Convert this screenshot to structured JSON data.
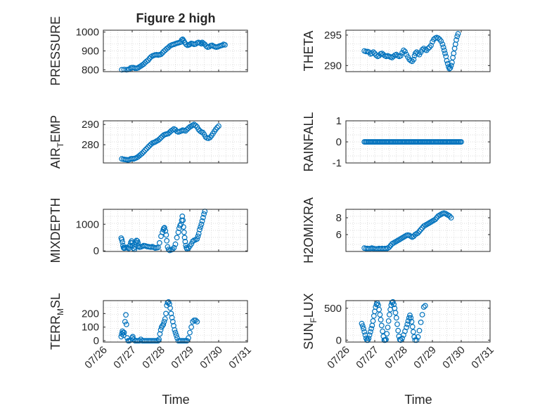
{
  "figure": {
    "title": "Figure 2 high",
    "xlabel": "Time",
    "x_tick_labels": [
      "07/26",
      "07/27",
      "07/28",
      "07/29",
      "07/30",
      "07/31"
    ],
    "marker_color": "#0072BD",
    "grid": true
  },
  "chart_data": [
    {
      "type": "scatter",
      "ylabel": "PRESSURE",
      "ylabel_sub": "",
      "ylabel_after": "",
      "ylim": [
        790,
        1010
      ],
      "yticks": [
        800,
        900,
        1000
      ],
      "xlim": [
        0,
        5
      ],
      "series_points": "0.64,800;0.72,801;0.8,800;0.85,801;0.9,803;0.95,810;1.0,811;1.05,811;1.1,808;1.15,808;1.2,810;1.25,815;1.3,820;1.35,825;1.4,830;1.45,838;1.5,845;1.55,850;1.6,860;1.65,868;1.7,873;1.75,876;1.8,879;1.85,880;1.9,878;1.95,880;2.0,882;2.05,890;2.1,898;2.15,905;2.2,912;2.25,918;2.3,925;2.35,930;2.4,933;2.45,935;2.5,938;2.55,941;2.6,943;2.65,945;2.7,948;2.72,958;2.75,962;2.78,955;2.82,945;2.87,935;2.92,930;2.97,932;3.0,935;3.05,940;3.1,938;3.15,935;3.2,937;3.25,942;3.3,945;3.35,942;3.4,938;3.43,945;3.47,940;3.52,935;3.57,925;3.62,920;3.67,922;3.72,928;3.77,930;3.82,925;3.87,922;3.92,920;3.97,922;4.02,925;4.07,928;4.12,930;4.17,935;4.22,932"
    },
    {
      "type": "scatter",
      "ylabel": "THETA",
      "ylabel_sub": "",
      "ylabel_after": "",
      "ylim": [
        289,
        295.8
      ],
      "yticks": [
        290,
        295
      ],
      "xlim": [
        0,
        5
      ],
      "series_points": "0.64,292.4;0.7,292.3;0.75,292.3;0.8,292.2;0.85,291.9;0.9,292.0;0.95,292.2;1.0,292.0;1.05,291.7;1.1,291.5;1.15,291.6;1.2,291.9;1.25,292.0;1.3,291.8;1.35,291.6;1.4,291.5;1.45,291.6;1.5,291.5;1.55,291.4;1.6,291.3;1.65,291.5;1.7,291.7;1.75,291.8;1.8,291.6;1.85,291.5;1.9,291.6;1.95,292.1;2.0,292.5;2.05,292.3;2.1,291.8;2.15,291.4;2.2,291.0;2.25,290.8;2.3,290.7;2.35,291.0;2.38,291.6;2.41,292.0;2.45,292.2;2.5,292.0;2.55,291.8;2.6,292.2;2.65,292.6;2.7,292.8;2.75,292.6;2.8,292.5;2.85,292.8;2.9,293.0;2.95,293.3;3.0,293.9;3.05,294.3;3.1,294.5;3.15,294.6;3.2,294.5;3.25,294.3;3.3,294.0;3.35,293.5;3.38,293.0;3.41,292.5;3.44,292.0;3.47,291.5;3.5,290.8;3.53,290.3;3.56,289.8;3.59,289.5;3.62,289.6;3.65,290.0;3.68,290.5;3.71,291.3;3.74,292.0;3.77,292.8;3.8,293.5;3.83,294.2;3.86,294.8;3.89,295.2"
    },
    {
      "type": "scatter",
      "ylabel": "AIR",
      "ylabel_sub": "T",
      "ylabel_after": "EMP",
      "ylim": [
        271,
        291.8
      ],
      "yticks": [
        280,
        290
      ],
      "xlim": [
        0,
        5
      ],
      "series_points": "0.64,273.0;0.7,272.8;0.75,272.7;0.8,272.6;0.85,272.5;0.9,272.6;0.95,273.0;1.0,273.1;1.05,273.0;1.1,273.3;1.15,273.6;1.2,274.0;1.25,274.6;1.3,275.2;1.35,275.8;1.4,276.5;1.45,277.3;1.5,278.0;1.55,278.8;1.6,279.5;1.65,280.2;1.7,280.8;1.75,281.1;1.8,281.4;1.85,281.8;1.9,282.2;1.95,282.8;2.0,283.5;2.05,284.2;2.1,284.8;2.15,285.1;2.2,285.3;2.25,285.5;2.3,286.1;2.35,286.8;2.4,287.3;2.45,287.8;2.5,287.4;2.55,286.6;2.6,286.3;2.65,286.5;2.7,286.8;2.75,287.2;2.8,287.0;2.85,286.8;2.9,287.5;2.95,288.2;3.0,288.8;3.05,289.2;3.1,289.6;3.15,290.0;3.2,289.5;3.25,288.8;3.3,287.6;3.35,286.8;3.4,286.3;3.45,286.0;3.5,285.0;3.55,283.8;3.6,283.3;3.65,283.2;3.7,283.6;3.75,284.4;3.8,285.5;3.85,286.6;3.9,287.6;3.95,288.5;4.0,289.2"
    },
    {
      "type": "scatter",
      "ylabel": "RAINFALL",
      "ylabel_sub": "",
      "ylabel_after": "",
      "ylim": [
        -1,
        1
      ],
      "yticks": [
        -1,
        0,
        1
      ],
      "xlim": [
        0,
        5
      ],
      "series_points": "0.64,0;0.68,0;0.72,0;0.76,0;0.8,0;0.84,0;0.88,0;0.92,0;0.96,0;1.0,0;1.04,0;1.08,0;1.12,0;1.16,0;1.2,0;1.24,0;1.28,0;1.32,0;1.36,0;1.4,0;1.44,0;1.48,0;1.52,0;1.56,0;1.6,0;1.64,0;1.68,0;1.72,0;1.76,0;1.8,0;1.84,0;1.88,0;1.92,0;1.96,0;2.0,0;2.04,0;2.08,0;2.12,0;2.16,0;2.2,0;2.24,0;2.28,0;2.32,0;2.36,0;2.4,0;2.44,0;2.48,0;2.52,0;2.56,0;2.6,0;2.64,0;2.68,0;2.72,0;2.76,0;2.8,0;2.84,0;2.88,0;2.92,0;2.96,0;3.0,0;3.04,0;3.08,0;3.12,0;3.16,0;3.2,0;3.24,0;3.28,0;3.32,0;3.36,0;3.4,0;3.44,0;3.48,0;3.52,0;3.56,0;3.6,0;3.64,0;3.68,0;3.72,0;3.76,0;3.8,0;3.84,0;3.88,0;3.92,0;3.96,0;4.0,0"
    },
    {
      "type": "scatter",
      "ylabel": "MIXDEPTH",
      "ylabel_sub": "",
      "ylabel_after": "",
      "ylim": [
        -20,
        1560
      ],
      "yticks": [
        0,
        1000
      ],
      "xlim": [
        0,
        5
      ],
      "series_points": "0.62,480;0.64,420;0.66,330;0.68,200;0.7,120;0.72,100;0.75,110;0.8,130;0.85,120;0.88,90;0.92,200;0.95,310;0.98,370;1.0,300;1.02,210;1.05,100;1.08,60;1.1,150;1.12,320;1.15,390;1.18,370;1.2,300;1.22,180;1.25,140;1.3,150;1.35,170;1.4,200;1.45,190;1.5,170;1.55,160;1.6,150;1.65,140;1.7,160;1.75,130;1.8,110;1.85,120;1.9,130;1.95,300;2.0,550;2.05,700;2.08,800;2.1,850;2.12,870;2.15,750;2.18,600;2.2,380;2.23,150;2.26,60;2.3,20;2.35,40;2.4,60;2.45,120;2.5,250;2.55,500;2.6,700;2.63,850;2.66,950;2.69,1000;2.72,1150;2.74,1300;2.76,1150;2.78,900;2.8,700;2.82,500;2.84,350;2.86,200;2.88,120;2.9,80;2.95,100;3.0,180;3.05,260;3.1,360;3.15,400;3.2,420;3.25,450;3.28,550;3.31,650;3.34,800;3.37,900;3.4,1000;3.43,1120;3.46,1250;3.49,1380;3.52,1480"
    },
    {
      "type": "scatter",
      "ylabel": "H2OMIXRA",
      "ylabel_sub": "",
      "ylabel_after": "",
      "ylim": [
        4.0,
        9.0
      ],
      "yticks": [
        6,
        8
      ],
      "xlim": [
        0,
        5
      ],
      "series_points": "0.64,4.4;0.7,4.35;0.75,4.35;0.8,4.3;0.85,4.35;0.9,4.4;0.95,4.35;1.0,4.3;1.05,4.3;1.1,4.3;1.15,4.35;1.2,4.3;1.25,4.35;1.3,4.3;1.35,4.35;1.4,4.3;1.45,4.4;1.5,4.5;1.55,4.7;1.6,4.9;1.65,5.0;1.7,5.1;1.75,5.2;1.8,5.3;1.85,5.4;1.9,5.5;1.95,5.6;2.0,5.7;2.05,5.8;2.1,5.9;2.15,5.95;2.2,5.9;2.25,5.8;2.3,5.7;2.35,5.8;2.4,6.0;2.45,6.1;2.5,6.2;2.55,6.4;2.6,6.6;2.65,6.8;2.7,7.0;2.75,7.1;2.8,7.2;2.85,7.3;2.9,7.4;2.95,7.5;3.0,7.6;3.05,7.7;3.1,7.8;3.15,8.0;3.2,8.2;3.25,8.3;3.3,8.4;3.35,8.5;3.4,8.55;3.45,8.5;3.5,8.4;3.55,8.3;3.6,8.2;3.65,8.0"
    },
    {
      "type": "scatter",
      "ylabel": "TERR",
      "ylabel_sub": "M",
      "ylabel_after": "SL",
      "ylim": [
        -10,
        295
      ],
      "yticks": [
        0,
        100,
        200
      ],
      "xlim": [
        0,
        5
      ],
      "series_points": "0.62,30;0.64,50;0.66,70;0.68,60;0.7,40;0.72,60;0.75,140;0.78,190;0.8,120;0.83,20;0.86,0;0.9,0;0.95,5;1.0,20;1.02,30;1.05,10;1.1,0;1.15,0;1.2,0;1.25,0;1.3,10;1.35,0;1.4,0;1.45,0;1.5,0;1.55,0;1.6,0;1.65,0;1.7,0;1.75,0;1.8,0;1.85,0;1.9,0;1.93,10;1.96,50;1.99,80;2.02,100;2.05,110;2.08,120;2.11,140;2.14,160;2.17,200;2.2,260;2.23,280;2.26,285;2.29,270;2.32,240;2.35,200;2.38,170;2.41,140;2.44,110;2.47,80;2.5,60;2.53,40;2.56,20;2.6,0;2.65,0;2.7,0;2.75,0;2.8,0;2.85,0;2.9,0;2.95,20;3.0,60;3.05,100;3.1,140;3.15,150;3.2,150;3.25,140"
    },
    {
      "type": "scatter",
      "ylabel": "SUN",
      "ylabel_sub": "F",
      "ylabel_after": "LUX",
      "ylim": [
        -30,
        620
      ],
      "yticks": [
        0,
        500
      ],
      "xlim": [
        0,
        5
      ],
      "series_points": "0.55,260;0.58,220;0.61,180;0.64,130;0.67,80;0.7,30;0.73,0;0.76,0;0.79,30;0.82,80;0.85,130;0.88,180;0.91,230;0.94,300;0.97,380;1.0,450;1.03,520;1.06,560;1.09,580;1.12,550;1.15,480;1.18,400;1.21,320;1.24,230;1.27,140;1.3,60;1.33,0;1.36,0;1.39,10;1.42,100;1.45,200;1.48,300;1.51,400;1.54,480;1.57,550;1.6,590;1.63,600;1.66,560;1.69,500;1.72,430;1.75,350;1.78,250;1.81,150;1.84,60;1.87,10;1.9,0;1.95,30;2.0,80;2.05,140;2.1,200;2.13,250;2.16,300;2.19,350;2.22,390;2.25,350;2.28,290;2.31,210;2.34,130;2.37,50;2.4,0;2.45,0;2.5,50;2.55,150;2.6,280;2.65,400;2.7,520;2.75,540"
    }
  ]
}
